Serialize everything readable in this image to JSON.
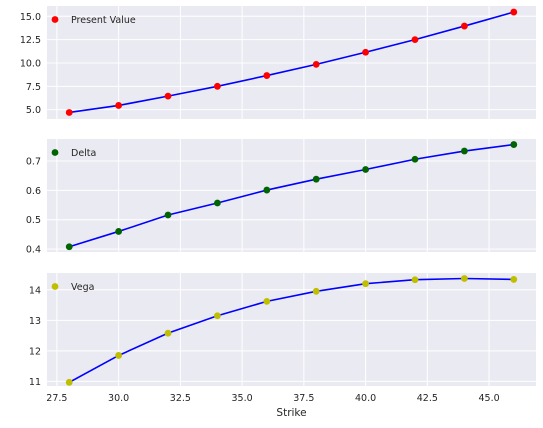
{
  "colors": {
    "axes_background": "#EAEAF2",
    "grid": "#FFFFFF",
    "line": "#0000FF",
    "present_value_marker": "#FF0000",
    "delta_marker": "#006400",
    "vega_marker": "#BFBF00",
    "tick_text": "#262626"
  },
  "chart_data": [
    {
      "type": "scatter",
      "overlay": "line",
      "x": [
        28,
        30,
        32,
        34,
        36,
        38,
        40,
        42,
        44,
        46
      ],
      "series": [
        {
          "name": "Present Value",
          "values": [
            4.7,
            5.45,
            6.45,
            7.5,
            8.65,
            9.85,
            11.15,
            12.5,
            13.95,
            15.45
          ]
        }
      ],
      "xlim": [
        27.1,
        46.9
      ],
      "ylim": [
        4.0,
        16.1
      ],
      "yticks": [
        5.0,
        7.5,
        10.0,
        12.5,
        15.0
      ],
      "ytick_labels": [
        "5.0",
        "7.5",
        "10.0",
        "12.5",
        "15.0"
      ],
      "grid": true,
      "legend": "top-left"
    },
    {
      "type": "scatter",
      "overlay": "line",
      "x": [
        28,
        30,
        32,
        34,
        36,
        38,
        40,
        42,
        44,
        46
      ],
      "series": [
        {
          "name": "Delta",
          "values": [
            0.408,
            0.46,
            0.516,
            0.557,
            0.601,
            0.638,
            0.671,
            0.706,
            0.734,
            0.756
          ]
        }
      ],
      "xlim": [
        27.1,
        46.9
      ],
      "ylim": [
        0.39,
        0.775
      ],
      "yticks": [
        0.4,
        0.5,
        0.6,
        0.7
      ],
      "ytick_labels": [
        "0.4",
        "0.5",
        "0.6",
        "0.7"
      ],
      "grid": true,
      "legend": "top-left"
    },
    {
      "type": "scatter",
      "overlay": "line",
      "x": [
        28,
        30,
        32,
        34,
        36,
        38,
        40,
        42,
        44,
        46
      ],
      "series": [
        {
          "name": "Vega",
          "values": [
            10.97,
            11.85,
            12.58,
            13.15,
            13.62,
            13.95,
            14.2,
            14.33,
            14.37,
            14.34
          ]
        }
      ],
      "xlim": [
        27.1,
        46.9
      ],
      "ylim": [
        10.85,
        14.55
      ],
      "yticks": [
        11,
        12,
        13,
        14
      ],
      "ytick_labels": [
        "11",
        "12",
        "13",
        "14"
      ],
      "xticks": [
        27.5,
        30.0,
        32.5,
        35.0,
        37.5,
        40.0,
        42.5,
        45.0
      ],
      "xtick_labels": [
        "27.5",
        "30.0",
        "32.5",
        "35.0",
        "37.5",
        "40.0",
        "42.5",
        "45.0"
      ],
      "xlabel": "Strike",
      "grid": true,
      "legend": "top-left"
    }
  ]
}
